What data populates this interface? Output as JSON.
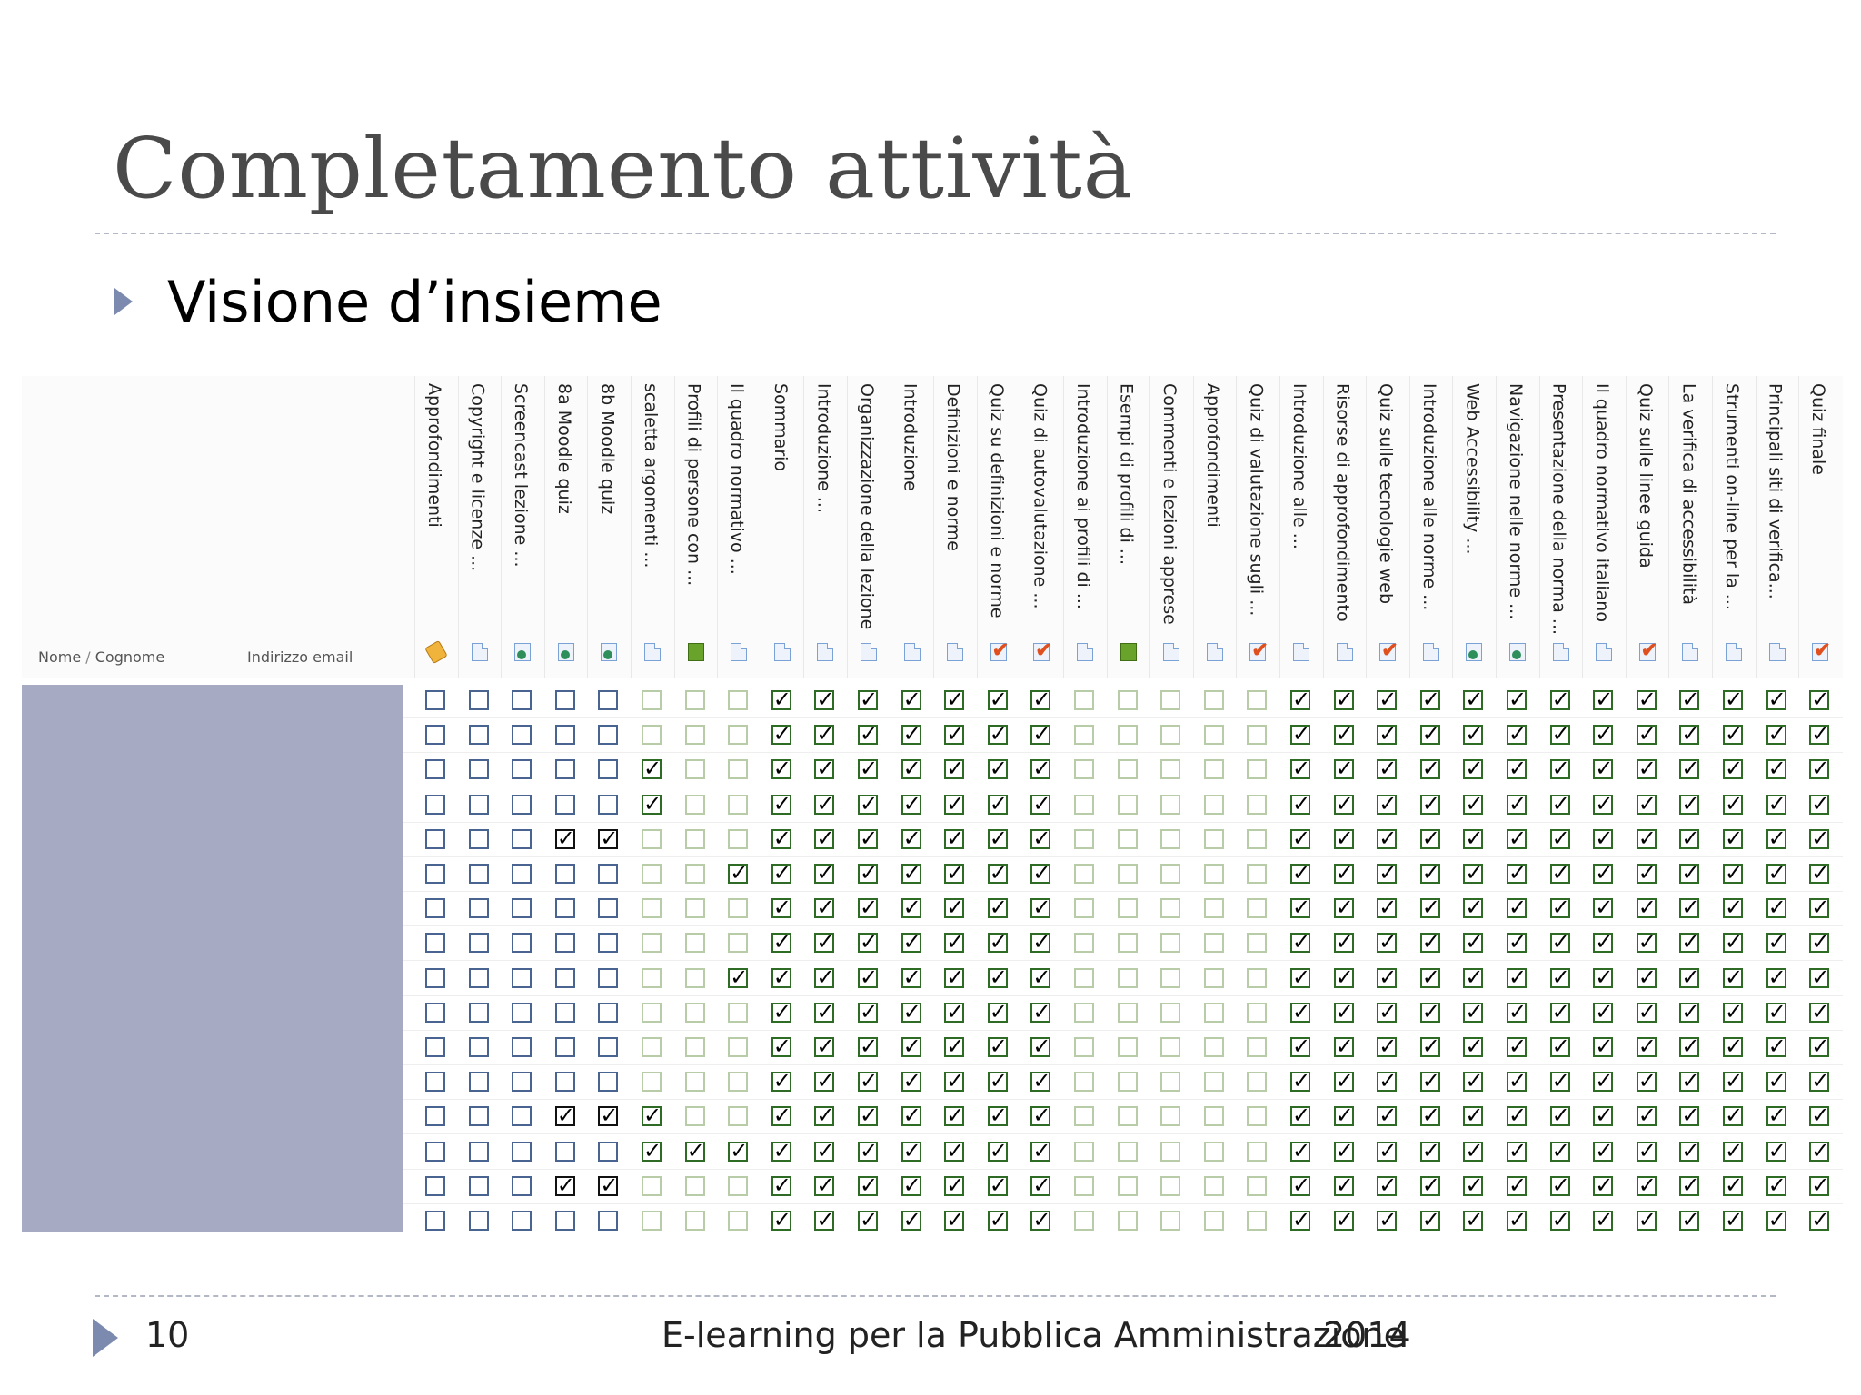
{
  "slide": {
    "title": "Completamento attività",
    "bullet": "Visione d’insieme"
  },
  "table": {
    "name_header": "Nome",
    "name_header_sep": " / ",
    "surname_header": "Cognome",
    "email_header": "Indirizzo email",
    "columns": [
      {
        "label": "Approfondimenti",
        "icon": "tag-icon"
      },
      {
        "label": "Copyright e licenze ...",
        "icon": "page-icon"
      },
      {
        "label": "Screencast lezione ...",
        "icon": "url-globe-icon"
      },
      {
        "label": "8a Moodle quiz",
        "icon": "url-globe-icon"
      },
      {
        "label": "8b Moodle quiz",
        "icon": "url-globe-icon"
      },
      {
        "label": "scaletta argomenti ...",
        "icon": "page-icon"
      },
      {
        "label": "Profili di persone con ...",
        "icon": "book-icon"
      },
      {
        "label": "Il quadro normativo ...",
        "icon": "page-icon"
      },
      {
        "label": "Sommario",
        "icon": "page-icon"
      },
      {
        "label": "Introduzione ...",
        "icon": "page-icon"
      },
      {
        "label": "Organizzazione della lezione",
        "icon": "page-icon"
      },
      {
        "label": "Introduzione",
        "icon": "page-icon"
      },
      {
        "label": "Definizioni e norme",
        "icon": "page-icon"
      },
      {
        "label": "Quiz su definizioni e norme",
        "icon": "quiz-icon"
      },
      {
        "label": "Quiz di autovalutazione ...",
        "icon": "quiz-icon"
      },
      {
        "label": "Introduzione ai profili di ...",
        "icon": "page-icon"
      },
      {
        "label": "Esempi di profili di ...",
        "icon": "book-icon"
      },
      {
        "label": "Commenti e lezioni apprese",
        "icon": "page-icon"
      },
      {
        "label": "Approfondimenti",
        "icon": "page-icon"
      },
      {
        "label": "Quiz di valutazione sugli ...",
        "icon": "quiz-icon"
      },
      {
        "label": "Introduzione alle ...",
        "icon": "page-icon"
      },
      {
        "label": "Risorse di approfondimento",
        "icon": "page-icon"
      },
      {
        "label": "Quiz sulle tecnologie web",
        "icon": "quiz-icon"
      },
      {
        "label": "Introduzione alle norme ...",
        "icon": "page-icon"
      },
      {
        "label": "Web Accessibility ...",
        "icon": "url-globe-icon"
      },
      {
        "label": "Navigazione nelle norme ...",
        "icon": "url-globe-icon"
      },
      {
        "label": "Presentazione della norma ...",
        "icon": "page-icon"
      },
      {
        "label": "Il quadro normativo italiano",
        "icon": "page-icon"
      },
      {
        "label": "Quiz sulle linee guida",
        "icon": "quiz-icon"
      },
      {
        "label": "La verifica di accessibilità",
        "icon": "page-icon"
      },
      {
        "label": "Strumenti on-line per la ...",
        "icon": "page-icon"
      },
      {
        "label": "Principali siti di verifica...",
        "icon": "page-icon"
      },
      {
        "label": "Quiz finale",
        "icon": "quiz-icon"
      }
    ],
    "box_styles": [
      "blue",
      "blue",
      "blue",
      "blue",
      "blue",
      "green",
      "green",
      "green",
      "green",
      "green",
      "green",
      "green",
      "green",
      "green",
      "green",
      "green",
      "green",
      "green",
      "green",
      "green",
      "green",
      "green",
      "green",
      "green",
      "green",
      "green",
      "green",
      "green",
      "green",
      "green",
      "green",
      "green",
      "green"
    ],
    "rows": [
      [
        0,
        0,
        0,
        0,
        0,
        0,
        0,
        0,
        1,
        1,
        1,
        1,
        1,
        1,
        1,
        0,
        0,
        0,
        0,
        0,
        1,
        1,
        1,
        1,
        1,
        1,
        1,
        1,
        1,
        1,
        1,
        1,
        1
      ],
      [
        0,
        0,
        0,
        0,
        0,
        0,
        0,
        0,
        1,
        1,
        1,
        1,
        1,
        1,
        1,
        0,
        0,
        0,
        0,
        0,
        1,
        1,
        1,
        1,
        1,
        1,
        1,
        1,
        1,
        1,
        1,
        1,
        1
      ],
      [
        0,
        0,
        0,
        0,
        0,
        1,
        0,
        0,
        1,
        1,
        1,
        1,
        1,
        1,
        1,
        0,
        0,
        0,
        0,
        0,
        1,
        1,
        1,
        1,
        1,
        1,
        1,
        1,
        1,
        1,
        1,
        1,
        1
      ],
      [
        0,
        0,
        0,
        0,
        0,
        1,
        0,
        0,
        1,
        1,
        1,
        1,
        1,
        1,
        1,
        0,
        0,
        0,
        0,
        0,
        1,
        1,
        1,
        1,
        1,
        1,
        1,
        1,
        1,
        1,
        1,
        1,
        1
      ],
      [
        0,
        0,
        0,
        1,
        1,
        0,
        0,
        0,
        1,
        1,
        1,
        1,
        1,
        1,
        1,
        0,
        0,
        0,
        0,
        0,
        1,
        1,
        1,
        1,
        1,
        1,
        1,
        1,
        1,
        1,
        1,
        1,
        1
      ],
      [
        0,
        0,
        0,
        0,
        0,
        0,
        0,
        1,
        1,
        1,
        1,
        1,
        1,
        1,
        1,
        0,
        0,
        0,
        0,
        0,
        1,
        1,
        1,
        1,
        1,
        1,
        1,
        1,
        1,
        1,
        1,
        1,
        1
      ],
      [
        0,
        0,
        0,
        0,
        0,
        0,
        0,
        0,
        1,
        1,
        1,
        1,
        1,
        1,
        1,
        0,
        0,
        0,
        0,
        0,
        1,
        1,
        1,
        1,
        1,
        1,
        1,
        1,
        1,
        1,
        1,
        1,
        1
      ],
      [
        0,
        0,
        0,
        0,
        0,
        0,
        0,
        0,
        1,
        1,
        1,
        1,
        1,
        1,
        1,
        0,
        0,
        0,
        0,
        0,
        1,
        1,
        1,
        1,
        1,
        1,
        1,
        1,
        1,
        1,
        1,
        1,
        1
      ],
      [
        0,
        0,
        0,
        0,
        0,
        0,
        0,
        1,
        1,
        1,
        1,
        1,
        1,
        1,
        1,
        0,
        0,
        0,
        0,
        0,
        1,
        1,
        1,
        1,
        1,
        1,
        1,
        1,
        1,
        1,
        1,
        1,
        1
      ],
      [
        0,
        0,
        0,
        0,
        0,
        0,
        0,
        0,
        1,
        1,
        1,
        1,
        1,
        1,
        1,
        0,
        0,
        0,
        0,
        0,
        1,
        1,
        1,
        1,
        1,
        1,
        1,
        1,
        1,
        1,
        1,
        1,
        1
      ],
      [
        0,
        0,
        0,
        0,
        0,
        0,
        0,
        0,
        1,
        1,
        1,
        1,
        1,
        1,
        1,
        0,
        0,
        0,
        0,
        0,
        1,
        1,
        1,
        1,
        1,
        1,
        1,
        1,
        1,
        1,
        1,
        1,
        1
      ],
      [
        0,
        0,
        0,
        0,
        0,
        0,
        0,
        0,
        1,
        1,
        1,
        1,
        1,
        1,
        1,
        0,
        0,
        0,
        0,
        0,
        1,
        1,
        1,
        1,
        1,
        1,
        1,
        1,
        1,
        1,
        1,
        1,
        1
      ],
      [
        0,
        0,
        0,
        1,
        1,
        1,
        0,
        0,
        1,
        1,
        1,
        1,
        1,
        1,
        1,
        0,
        0,
        0,
        0,
        0,
        1,
        1,
        1,
        1,
        1,
        1,
        1,
        1,
        1,
        1,
        1,
        1,
        1
      ],
      [
        0,
        0,
        0,
        0,
        0,
        1,
        1,
        1,
        1,
        1,
        1,
        1,
        1,
        1,
        1,
        0,
        0,
        0,
        0,
        0,
        1,
        1,
        1,
        1,
        1,
        1,
        1,
        1,
        1,
        1,
        1,
        1,
        1
      ],
      [
        0,
        0,
        0,
        1,
        1,
        0,
        0,
        0,
        1,
        1,
        1,
        1,
        1,
        1,
        1,
        0,
        0,
        0,
        0,
        0,
        1,
        1,
        1,
        1,
        1,
        1,
        1,
        1,
        1,
        1,
        1,
        1,
        1
      ],
      [
        0,
        0,
        0,
        0,
        0,
        0,
        0,
        0,
        1,
        1,
        1,
        1,
        1,
        1,
        1,
        0,
        0,
        0,
        0,
        0,
        1,
        1,
        1,
        1,
        1,
        1,
        1,
        1,
        1,
        1,
        1,
        1,
        1
      ]
    ],
    "check_glyph": "✓"
  },
  "footer": {
    "page_number": "10",
    "course": "E-learning per la Pubblica Amministrazione",
    "year": "2014"
  },
  "colors": {
    "redaction": "#a7aac3",
    "accent_triangle": "#7c8ab0",
    "divider": "#b3b8c6"
  }
}
